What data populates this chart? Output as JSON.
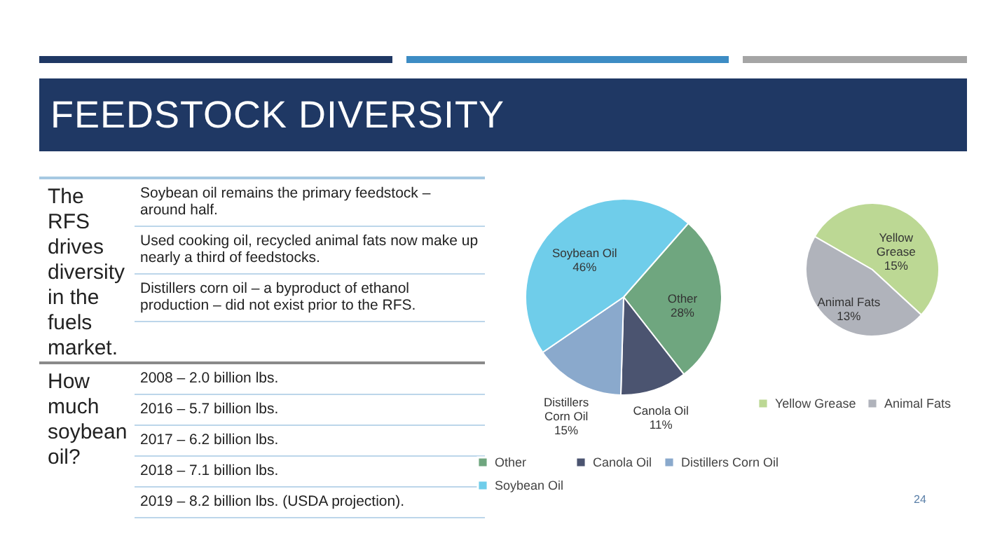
{
  "chart_data": [
    {
      "type": "other",
      "title": "FEEDSTOCK DIVERSITY",
      "annotations": [
        "The RFS drives diversity in the fuels market.",
        "Soybean oil remains the primary feedstock – around half.",
        "Used cooking oil, recycled animal fats now make up nearly a third of feedstocks.",
        "Distillers corn oil – a byproduct of ethanol production – did not exist prior to the RFS.",
        "How much soybean oil?",
        "2008 – 2.0 billion lbs.",
        "2016 – 5.7 billion lbs.",
        "2017 – 6.2 billion lbs.",
        "2018 – 7.1 billion lbs.",
        "2019 – 8.2 billion lbs. (USDA projection).",
        "24"
      ]
    },
    {
      "type": "pie",
      "categories": [
        "Other",
        "Canola Oil",
        "Distillers Corn Oil",
        "Soybean Oil"
      ],
      "values": [
        28,
        11,
        15,
        46
      ],
      "value_labels": [
        "28%",
        "11%",
        "15%",
        "46%"
      ],
      "colors": [
        "#6fa67f",
        "#4b5470",
        "#8aa9cc",
        "#6fcdea"
      ],
      "legend": "bottom"
    },
    {
      "type": "pie",
      "categories": [
        "Yellow Grease",
        "Animal Fats"
      ],
      "values": [
        15,
        13
      ],
      "value_labels": [
        "15%",
        "13%"
      ],
      "colors": [
        "#bcd894",
        "#b0b3bb"
      ],
      "legend": "bottom"
    }
  ]
}
